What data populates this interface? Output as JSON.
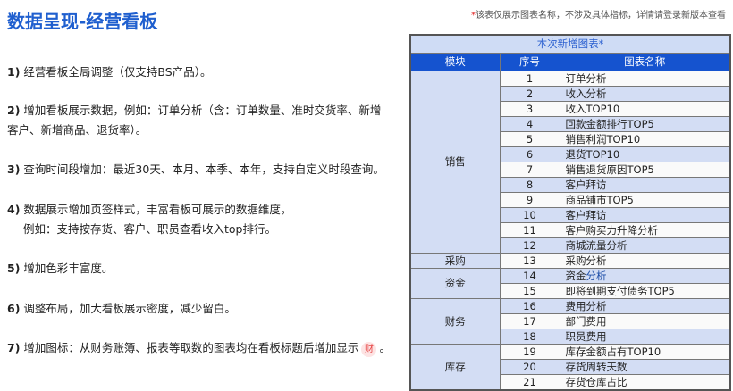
{
  "title": "数据呈现-经营看板",
  "note": {
    "star": "*",
    "text": "该表仅展示图表名称，不涉及具体指标，详情请登录新版本查看"
  },
  "items": [
    {
      "num": "1)",
      "text": "经营看板全局调整（仅支持BS产品）。"
    },
    {
      "num": "2)",
      "text": "增加看板展示数据，例如：订单分析（含：订单数量、准时交货率、新增",
      "text2": "客户、新增商品、退货率）。"
    },
    {
      "num": "3)",
      "text": "查询时间段增加：最近30天、本月、本季、本年，支持自定义时段查询。"
    },
    {
      "num": "4)",
      "text": "数据展示增加页签样式，丰富看板可展示的数据维度，",
      "text2": "例如：支持按存货、客户、职员查看收入top排行。"
    },
    {
      "num": "5)",
      "text": "增加色彩丰富度。"
    },
    {
      "num": "6)",
      "text": "调整布局，加大看板展示密度，减少留白。"
    },
    {
      "num": "7)",
      "text": "增加图标：从财务账簿、报表等取数的图表均在看板标题后增加显示",
      "badge": "财",
      "end": "。"
    }
  ],
  "table": {
    "caption": "本次新增图表*",
    "headers": [
      "模块",
      "序号",
      "图表名称"
    ],
    "modules": [
      "销售",
      "采购",
      "资金",
      "财务",
      "库存"
    ],
    "rows": [
      {
        "seq": "1",
        "name": "订单分析"
      },
      {
        "seq": "2",
        "name": "收入分析"
      },
      {
        "seq": "3",
        "name": "收入TOP10"
      },
      {
        "seq": "4",
        "name": "回款金额排行TOP5"
      },
      {
        "seq": "5",
        "name": "销售利润TOP10"
      },
      {
        "seq": "6",
        "name": "退货TOP10"
      },
      {
        "seq": "7",
        "name": "销售退货原因TOP5"
      },
      {
        "seq": "8",
        "name": "客户拜访"
      },
      {
        "seq": "9",
        "name": "商品铺市TOP5"
      },
      {
        "seq": "10",
        "name": "客户拜访"
      },
      {
        "seq": "11",
        "name": "客户购买力升降分析"
      },
      {
        "seq": "12",
        "name": "商城流量分析"
      },
      {
        "seq": "13",
        "name": "采购分析"
      },
      {
        "seq": "14",
        "name": "资金",
        "name_blue": "分析"
      },
      {
        "seq": "15",
        "name": "即将到期支付债务TOP5"
      },
      {
        "seq": "16",
        "name": "费用分析"
      },
      {
        "seq": "17",
        "name": "部门费用"
      },
      {
        "seq": "18",
        "name": "职员费用"
      },
      {
        "seq": "19",
        "name": "库存金额占有TOP10"
      },
      {
        "seq": "20",
        "name": "存货周转天数"
      },
      {
        "seq": "21",
        "name": "存货仓库占比"
      }
    ]
  },
  "colors": {
    "title": "#1f5fcf",
    "header": "#1553cf",
    "light": "#d3ddf4"
  }
}
